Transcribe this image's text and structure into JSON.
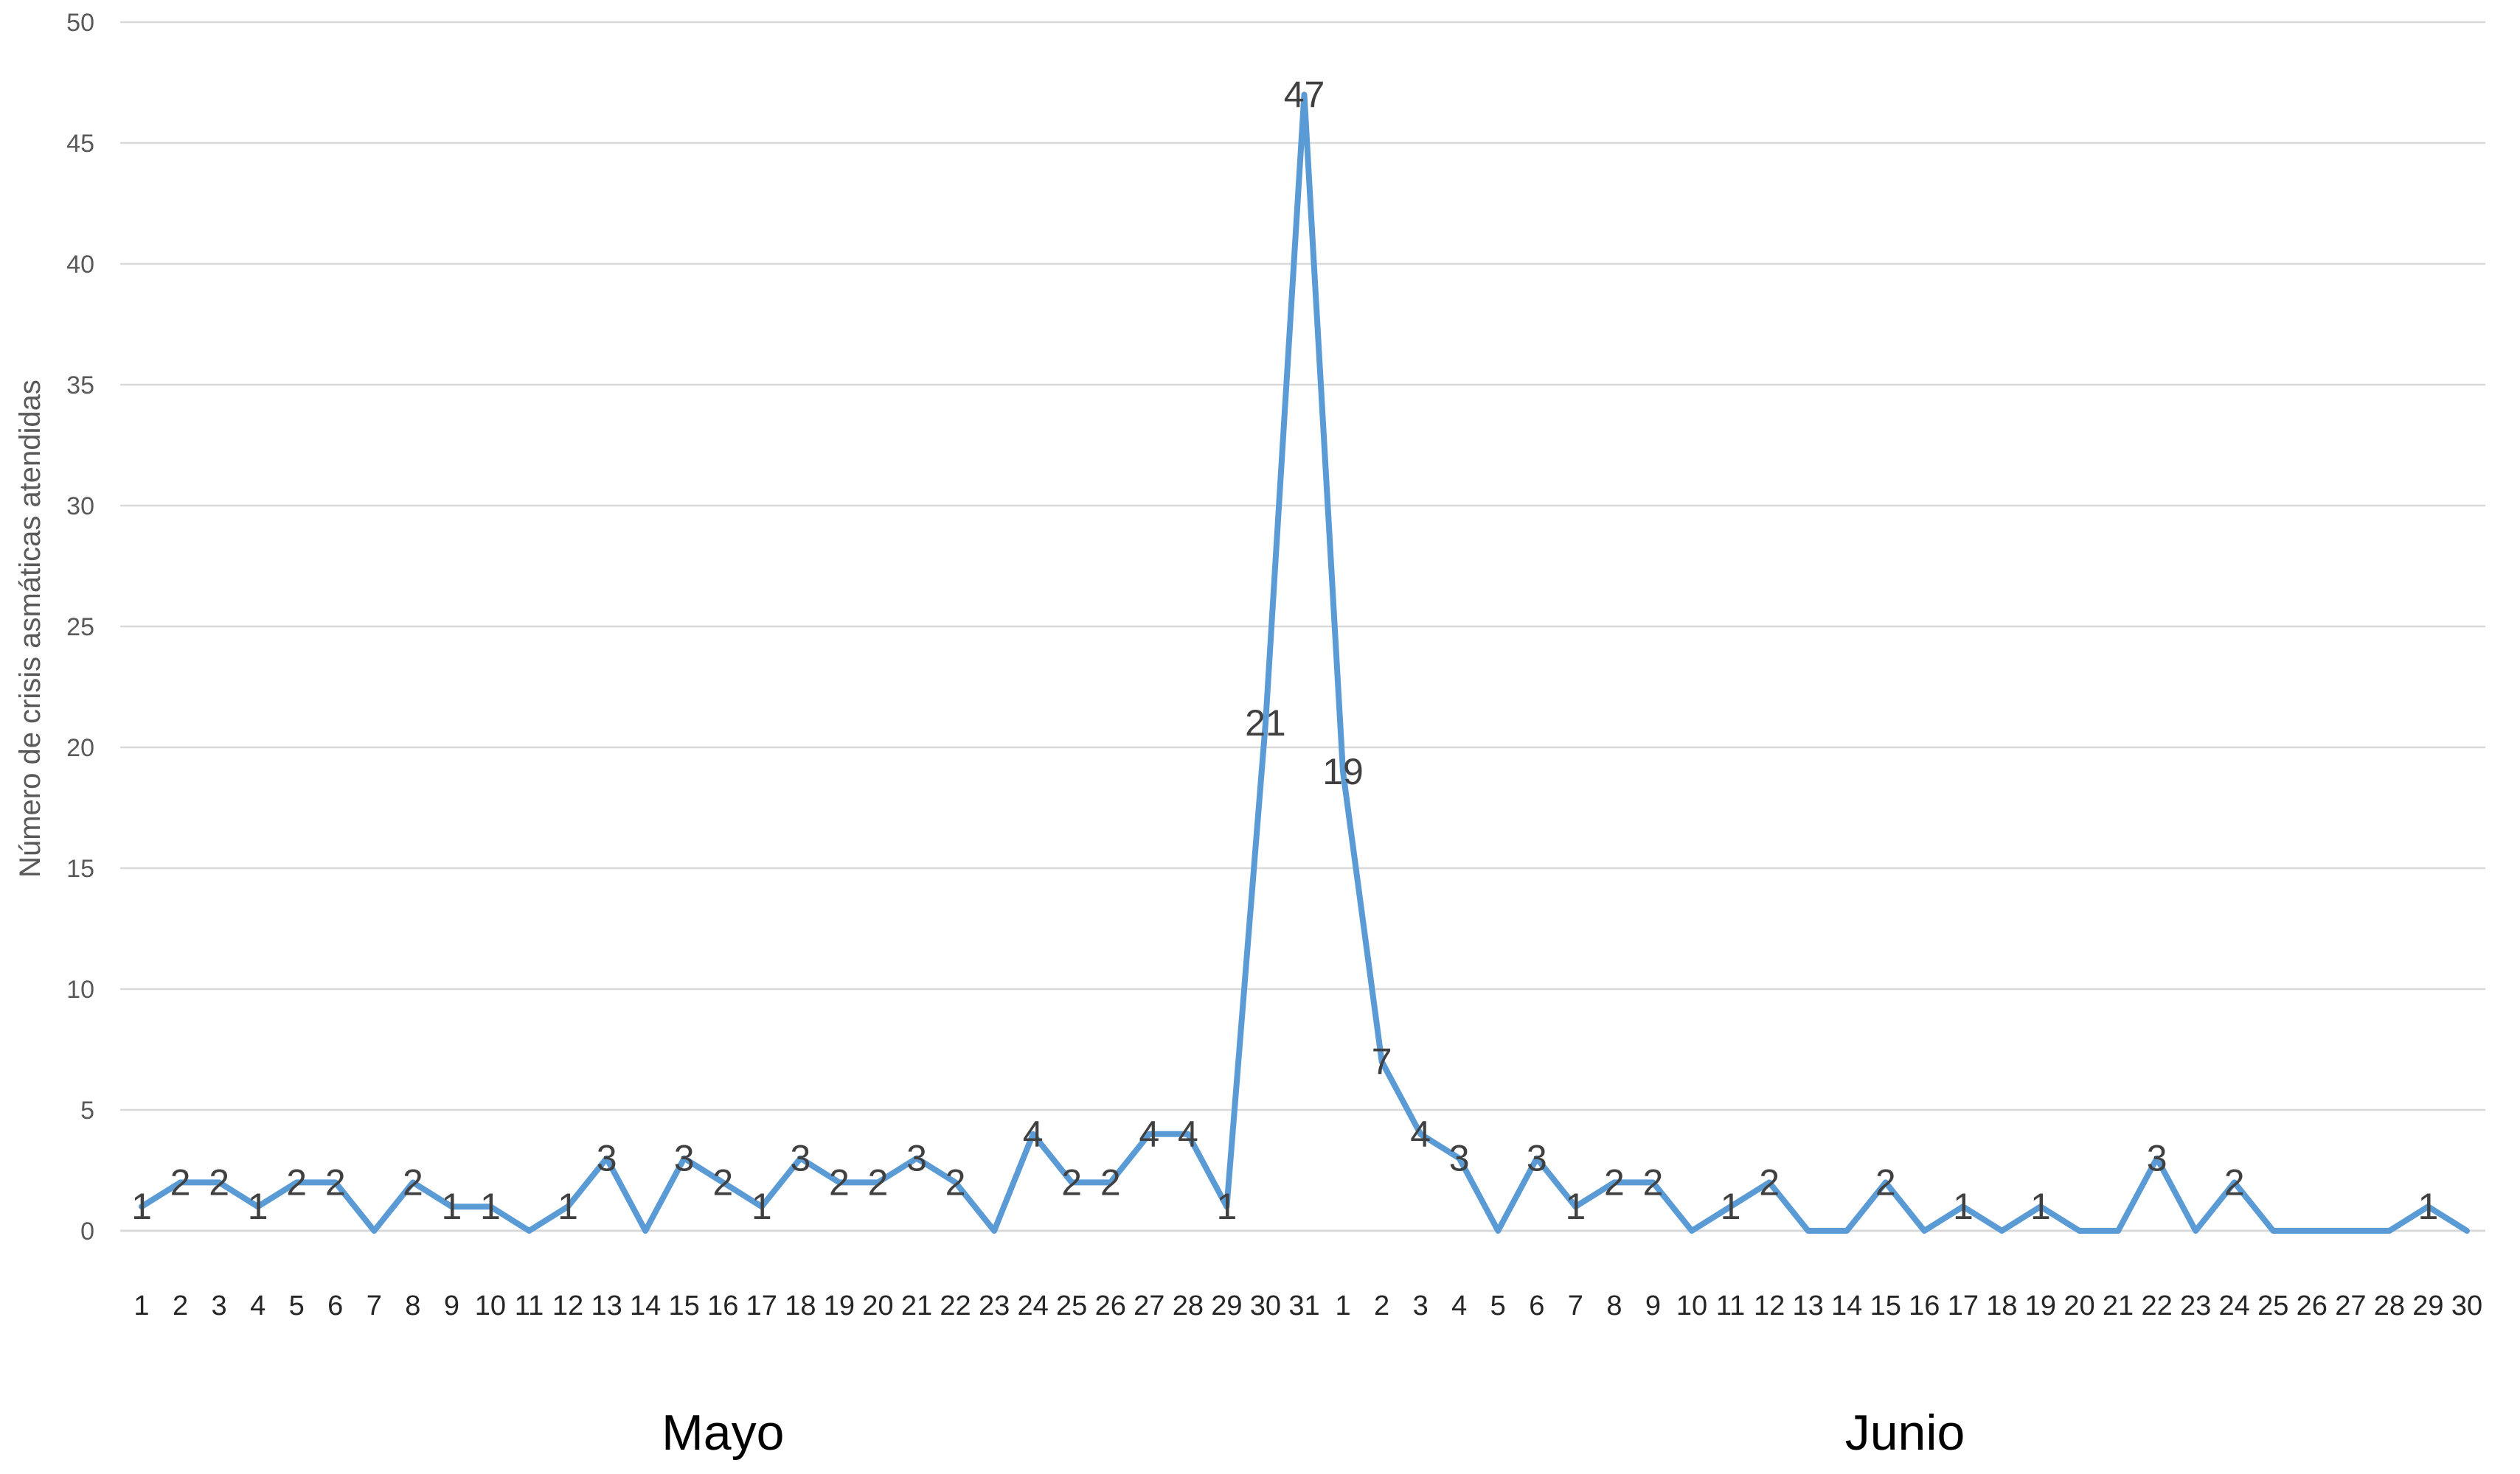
{
  "chart_data": {
    "type": "line",
    "title": "",
    "xlabel": "",
    "ylabel": "Número de crisis asmáticas atendidas",
    "ylim": [
      0,
      50
    ],
    "yticks": [
      "0",
      "5",
      "10",
      "15",
      "20",
      "25",
      "30",
      "35",
      "40",
      "45",
      "50"
    ],
    "grid": true,
    "legend": "none",
    "colors": {
      "line": "#5b9bd5",
      "grid": "#d9d9d9"
    },
    "months": [
      {
        "label": "Mayo",
        "days": 31
      },
      {
        "label": "Junio",
        "days": 30
      }
    ],
    "categories": [
      "1",
      "2",
      "3",
      "4",
      "5",
      "6",
      "7",
      "8",
      "9",
      "10",
      "11",
      "12",
      "13",
      "14",
      "15",
      "16",
      "17",
      "18",
      "19",
      "20",
      "21",
      "22",
      "23",
      "24",
      "25",
      "26",
      "27",
      "28",
      "29",
      "30",
      "31",
      "1",
      "2",
      "3",
      "4",
      "5",
      "6",
      "7",
      "8",
      "9",
      "10",
      "11",
      "12",
      "13",
      "14",
      "15",
      "16",
      "17",
      "18",
      "19",
      "20",
      "21",
      "22",
      "23",
      "24",
      "25",
      "26",
      "27",
      "28",
      "29",
      "30"
    ],
    "series": [
      {
        "values": [
          1,
          2,
          2,
          1,
          2,
          2,
          0,
          2,
          1,
          1,
          0,
          1,
          3,
          0,
          3,
          2,
          1,
          3,
          2,
          2,
          3,
          2,
          0,
          4,
          2,
          2,
          4,
          4,
          1,
          21,
          47,
          19,
          7,
          4,
          3,
          0,
          3,
          1,
          2,
          2,
          0,
          1,
          2,
          0,
          0,
          2,
          0,
          1,
          0,
          1,
          0,
          0,
          3,
          0,
          2,
          0,
          0,
          0,
          0,
          1,
          0
        ],
        "labels": [
          "1",
          "2",
          "2",
          "1",
          "2",
          "2",
          "",
          "2",
          "1",
          "1",
          "",
          "1",
          "3",
          "",
          "3",
          "2",
          "1",
          "3",
          "2",
          "2",
          "3",
          "2",
          "",
          "4",
          "2",
          "2",
          "4",
          "4",
          "1",
          "21",
          "47",
          "19",
          "7",
          "4",
          "3",
          "",
          "3",
          "1",
          "2",
          "2",
          "",
          "1",
          "2",
          "",
          "",
          "2",
          "",
          "1",
          "",
          "1",
          "",
          "",
          "3",
          "",
          "2",
          "",
          "",
          "",
          "",
          "1",
          ""
        ]
      }
    ]
  }
}
